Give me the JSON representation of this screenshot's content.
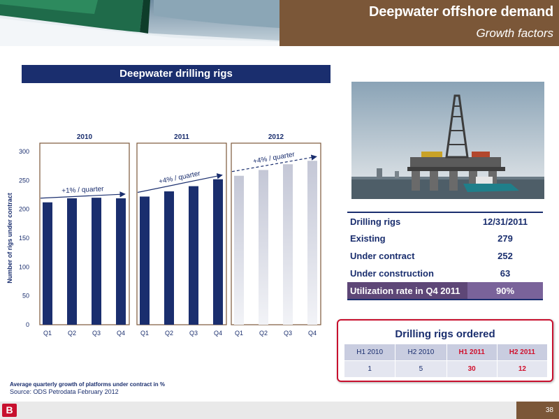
{
  "header": {
    "title": "Deepwater offshore demand",
    "subtitle": "Growth factors"
  },
  "chart_header": "Deepwater drilling rigs",
  "chart_data": {
    "type": "bar",
    "ylabel": "Number of rigs under contract",
    "ylim": [
      0,
      300
    ],
    "yticks": [
      0,
      50,
      100,
      150,
      200,
      250,
      300
    ],
    "groups": [
      {
        "year": "2010",
        "categories": [
          "Q1",
          "Q2",
          "Q3",
          "Q4"
        ],
        "values": [
          212,
          219,
          220,
          219
        ],
        "annotation": "+1% / quarter",
        "style": "actual"
      },
      {
        "year": "2011",
        "categories": [
          "Q1",
          "Q2",
          "Q3",
          "Q4"
        ],
        "values": [
          222,
          231,
          240,
          252
        ],
        "annotation": "+4% / quarter",
        "style": "actual"
      },
      {
        "year": "2012",
        "categories": [
          "Q1",
          "Q2",
          "Q3",
          "Q4"
        ],
        "values": [
          258,
          268,
          278,
          284
        ],
        "annotation": "+4% / quarter",
        "style": "forecast"
      }
    ],
    "colors": {
      "actual": "#1a2e6e",
      "forecast_top": "#c4c7d6",
      "forecast_bottom": "#f2f3f7",
      "frame": "#7b5738",
      "arrow": "#1a2e6e"
    }
  },
  "rigs_table": {
    "rows": [
      {
        "label": "Drilling rigs",
        "value": "12/31/2011"
      },
      {
        "label": "Existing",
        "value": "279"
      },
      {
        "label": "Under contract",
        "value": "252"
      },
      {
        "label": "Under construction",
        "value": "63"
      },
      {
        "label": "Utilization rate in Q4 2011",
        "value": "90%"
      }
    ]
  },
  "ordered": {
    "title": "Drilling rigs ordered",
    "headers": [
      "H1 2010",
      "H2 2010",
      "H1 2011",
      "H2 2011"
    ],
    "values": [
      "1",
      "5",
      "30",
      "12"
    ]
  },
  "footnote": "Average quarterly growth of platforms under contract in %",
  "source": "Source: ODS Petrodata February 2012",
  "logo_text": "B",
  "page_number": "38"
}
